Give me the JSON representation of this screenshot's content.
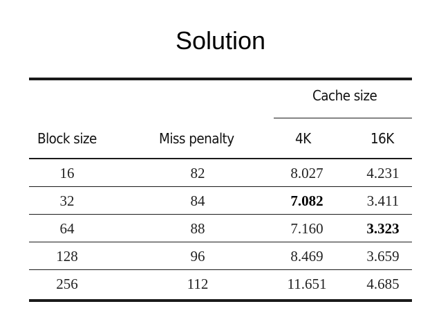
{
  "title": "Solution",
  "table": {
    "group_header": "Cache size",
    "columns": [
      "Block size",
      "Miss penalty",
      "4K",
      "16K"
    ],
    "rows": [
      {
        "block_size": "16",
        "miss_penalty": "82",
        "cache_4k": "8.027",
        "cache_16k": "4.231"
      },
      {
        "block_size": "32",
        "miss_penalty": "84",
        "cache_4k": "7.082",
        "cache_16k": "3.411"
      },
      {
        "block_size": "64",
        "miss_penalty": "88",
        "cache_4k": "7.160",
        "cache_16k": "3.323"
      },
      {
        "block_size": "128",
        "miss_penalty": "96",
        "cache_4k": "8.469",
        "cache_16k": "3.659"
      },
      {
        "block_size": "256",
        "miss_penalty": "112",
        "cache_4k": "11.651",
        "cache_16k": "4.685"
      }
    ],
    "bold_cells": [
      "rows.1.cache_4k",
      "rows.2.cache_16k"
    ]
  }
}
